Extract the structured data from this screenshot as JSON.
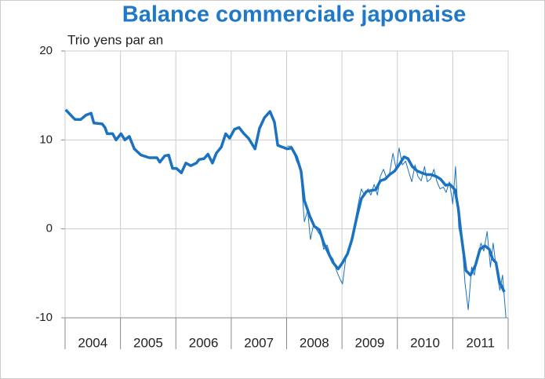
{
  "chart_data": {
    "type": "line",
    "title": "Balance commerciale japonaise",
    "ylabel": "Trio yens par an",
    "categories": [
      "2004",
      "2005",
      "2006",
      "2007",
      "2008",
      "2009",
      "2010",
      "2011"
    ],
    "xlim": [
      2004,
      2012
    ],
    "xticks": [
      2004,
      2005,
      2006,
      2007,
      2008,
      2009,
      2010,
      2011,
      2012
    ],
    "ylim": [
      -10,
      20
    ],
    "yticks": [
      20,
      10,
      0,
      -10
    ],
    "grid": true,
    "series": [
      {
        "color": "#1b72c0",
        "width": 3.5,
        "x": [
          2004.01,
          2004.1,
          2004.18,
          2004.28,
          2004.38,
          2004.47,
          2004.52,
          2004.67,
          2004.72,
          2004.76,
          2004.86,
          2004.92,
          2005.01,
          2005.08,
          2005.16,
          2005.25,
          2005.37,
          2005.52,
          2005.66,
          2005.71,
          2005.8,
          2005.87,
          2005.94,
          2006.01,
          2006.1,
          2006.18,
          2006.27,
          2006.37,
          2006.42,
          2006.51,
          2006.58,
          2006.66,
          2006.73,
          2006.82,
          2006.9,
          2006.97,
          2007.06,
          2007.14,
          2007.23,
          2007.31,
          2007.43,
          2007.51,
          2007.6,
          2007.7,
          2007.78,
          2007.84,
          2007.92,
          2008.01,
          2008.09,
          2008.18,
          2008.26,
          2008.32,
          2008.42,
          2008.5,
          2008.59,
          2008.67,
          2008.76,
          2008.84,
          2008.93,
          2009.01,
          2009.1,
          2009.18,
          2009.27,
          2009.35,
          2009.44,
          2009.52,
          2009.61,
          2009.69,
          2009.78,
          2009.86,
          2009.95,
          2010.03,
          2010.12,
          2010.19,
          2010.27,
          2010.36,
          2010.44,
          2010.53,
          2010.61,
          2010.7,
          2010.78,
          2010.87,
          2010.95,
          2011.04,
          2011.1,
          2011.15,
          2011.24,
          2011.32,
          2011.41,
          2011.49,
          2011.58,
          2011.66,
          2011.72,
          2011.78,
          2011.84,
          2011.93
        ],
        "values": [
          13.4,
          12.8,
          12.3,
          12.3,
          12.8,
          13.0,
          11.9,
          11.8,
          11.4,
          10.7,
          10.7,
          10.0,
          10.7,
          10.0,
          10.4,
          9.0,
          8.3,
          8.0,
          8.0,
          7.5,
          8.2,
          8.3,
          6.8,
          6.8,
          6.3,
          7.4,
          7.1,
          7.4,
          7.8,
          7.9,
          8.4,
          7.4,
          8.5,
          9.2,
          10.7,
          10.2,
          11.2,
          11.4,
          10.7,
          10.2,
          9.0,
          11.3,
          12.5,
          13.2,
          12.0,
          9.4,
          9.2,
          9.0,
          9.1,
          8.1,
          6.5,
          3.2,
          1.4,
          0.3,
          -0.1,
          -1.6,
          -2.8,
          -3.8,
          -4.5,
          -3.8,
          -2.8,
          -1.2,
          1.4,
          3.4,
          4.2,
          4.3,
          4.4,
          5.4,
          5.6,
          6.1,
          6.5,
          7.2,
          8.1,
          7.9,
          7.0,
          6.5,
          6.3,
          6.1,
          6.1,
          5.9,
          5.6,
          4.9,
          5.0,
          4.4,
          2.3,
          -0.6,
          -4.7,
          -5.2,
          -4.1,
          -2.3,
          -1.9,
          -2.3,
          -3.4,
          -3.8,
          -5.9,
          -7.1
        ]
      },
      {
        "color": "#1b72c0",
        "width": 1,
        "x": [
          2008.01,
          2008.09,
          2008.18,
          2008.25,
          2008.32,
          2008.38,
          2008.43,
          2008.49,
          2008.56,
          2008.62,
          2008.67,
          2008.73,
          2008.79,
          2008.84,
          2008.9,
          2008.96,
          2009.01,
          2009.07,
          2009.13,
          2009.18,
          2009.24,
          2009.3,
          2009.35,
          2009.41,
          2009.47,
          2009.52,
          2009.58,
          2009.64,
          2009.69,
          2009.75,
          2009.81,
          2009.86,
          2009.92,
          2009.98,
          2010.03,
          2010.09,
          2010.15,
          2010.2,
          2010.26,
          2010.32,
          2010.37,
          2010.43,
          2010.49,
          2010.54,
          2010.6,
          2010.66,
          2010.71,
          2010.77,
          2010.83,
          2010.88,
          2010.94,
          2011.0,
          2011.05,
          2011.11,
          2011.17,
          2011.22,
          2011.28,
          2011.34,
          2011.39,
          2011.45,
          2011.51,
          2011.56,
          2011.62,
          2011.68,
          2011.73,
          2011.79,
          2011.85,
          2011.9,
          2011.96
        ],
        "values": [
          9.3,
          9.3,
          7.6,
          6.7,
          0.8,
          2.1,
          -1.2,
          0.6,
          -0.3,
          -0.8,
          -2.3,
          -1.8,
          -3.0,
          -3.4,
          -4.7,
          -5.6,
          -6.2,
          -3.2,
          -2.1,
          -0.8,
          1.0,
          3.0,
          4.5,
          3.7,
          4.5,
          3.8,
          5.0,
          3.8,
          5.9,
          6.7,
          5.6,
          6.3,
          8.5,
          6.7,
          9.1,
          7.2,
          7.6,
          6.5,
          5.3,
          7.2,
          5.9,
          5.4,
          7.0,
          5.3,
          5.6,
          6.7,
          5.4,
          4.5,
          4.7,
          4.1,
          5.3,
          2.8,
          7.0,
          0.1,
          -1.6,
          -6.0,
          -9.1,
          -4.3,
          -5.2,
          -3.0,
          -1.6,
          -2.5,
          -0.3,
          -4.3,
          -1.6,
          -4.7,
          -6.9,
          -5.2,
          -10.0
        ]
      }
    ]
  }
}
